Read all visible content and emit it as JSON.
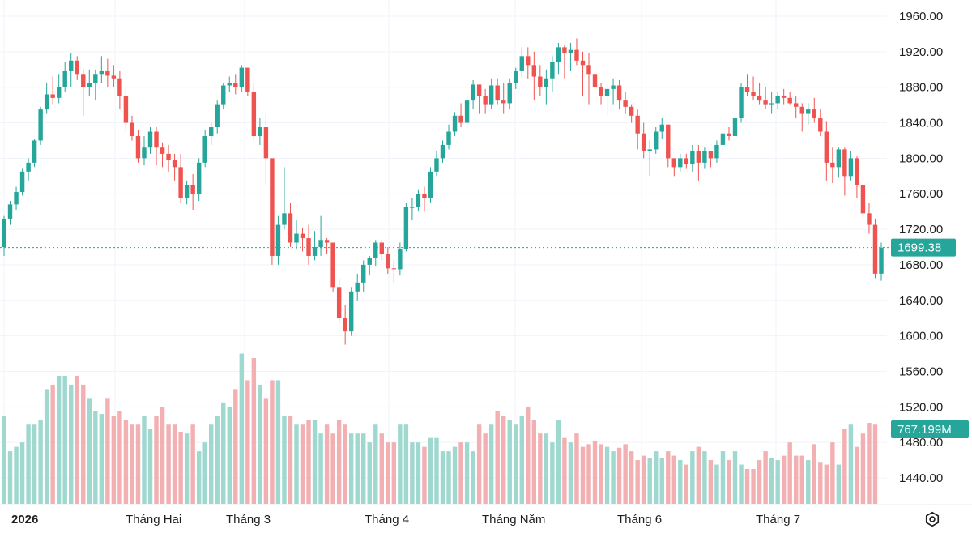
{
  "chart_data": {
    "type": "candlestick",
    "y_axis": {
      "min": 1400,
      "max": 1980,
      "ticks": [
        1440,
        1480,
        1520,
        1560,
        1600,
        1640,
        1680,
        1720,
        1760,
        1800,
        1840,
        1880,
        1920,
        1960
      ],
      "tick_labels": [
        "1440.00",
        "1480.00",
        "1520.00",
        "1560.00",
        "1600.00",
        "1640.00",
        "1680.00",
        "1720.00",
        "1760.00",
        "1800.00",
        "1840.00",
        "1880.00",
        "1920.00",
        "1960.00"
      ],
      "position": "right"
    },
    "x_axis": {
      "labels": [
        "2026",
        "Tháng Hai",
        "Tháng 3",
        "Tháng 4",
        "Tháng Năm",
        "Tháng 6",
        "Tháng 7"
      ]
    },
    "grid": true,
    "colors": {
      "up": "#26a69a",
      "down": "#ef5350",
      "up_volume": "#9fd8cf",
      "down_volume": "#f2b0b2",
      "grid": "#f0f3fa",
      "price_line": "#26a69a"
    },
    "last_price": {
      "value": 1699.38,
      "label": "1699.38"
    },
    "last_volume": {
      "label": "767.199M"
    },
    "ohlc": [
      [
        1700,
        1735,
        1690,
        1732
      ],
      [
        1732,
        1752,
        1725,
        1748
      ],
      [
        1748,
        1768,
        1742,
        1762
      ],
      [
        1762,
        1788,
        1758,
        1785
      ],
      [
        1785,
        1800,
        1775,
        1795
      ],
      [
        1795,
        1822,
        1790,
        1820
      ],
      [
        1820,
        1858,
        1815,
        1855
      ],
      [
        1855,
        1885,
        1850,
        1872
      ],
      [
        1872,
        1892,
        1860,
        1868
      ],
      [
        1868,
        1895,
        1862,
        1880
      ],
      [
        1880,
        1908,
        1875,
        1898
      ],
      [
        1898,
        1918,
        1880,
        1910
      ],
      [
        1910,
        1915,
        1888,
        1895
      ],
      [
        1895,
        1900,
        1848,
        1880
      ],
      [
        1880,
        1900,
        1870,
        1885
      ],
      [
        1885,
        1900,
        1865,
        1895
      ],
      [
        1895,
        1915,
        1885,
        1898
      ],
      [
        1898,
        1912,
        1880,
        1893
      ],
      [
        1893,
        1905,
        1880,
        1890
      ],
      [
        1890,
        1898,
        1855,
        1870
      ],
      [
        1870,
        1880,
        1830,
        1840
      ],
      [
        1840,
        1848,
        1820,
        1825
      ],
      [
        1825,
        1832,
        1795,
        1800
      ],
      [
        1800,
        1825,
        1792,
        1812
      ],
      [
        1812,
        1835,
        1805,
        1830
      ],
      [
        1830,
        1835,
        1792,
        1812
      ],
      [
        1812,
        1818,
        1790,
        1805
      ],
      [
        1805,
        1815,
        1785,
        1798
      ],
      [
        1798,
        1805,
        1775,
        1790
      ],
      [
        1790,
        1805,
        1750,
        1755
      ],
      [
        1755,
        1775,
        1748,
        1770
      ],
      [
        1770,
        1782,
        1742,
        1760
      ],
      [
        1760,
        1800,
        1752,
        1795
      ],
      [
        1795,
        1832,
        1790,
        1825
      ],
      [
        1825,
        1840,
        1815,
        1835
      ],
      [
        1835,
        1865,
        1828,
        1860
      ],
      [
        1860,
        1885,
        1855,
        1882
      ],
      [
        1882,
        1892,
        1875,
        1885
      ],
      [
        1885,
        1895,
        1872,
        1880
      ],
      [
        1880,
        1905,
        1875,
        1902
      ],
      [
        1902,
        1902,
        1870,
        1875
      ],
      [
        1875,
        1885,
        1820,
        1825
      ],
      [
        1825,
        1845,
        1815,
        1835
      ],
      [
        1835,
        1850,
        1770,
        1800
      ],
      [
        1800,
        1800,
        1680,
        1690
      ],
      [
        1690,
        1735,
        1680,
        1725
      ],
      [
        1725,
        1790,
        1720,
        1738
      ],
      [
        1738,
        1750,
        1700,
        1705
      ],
      [
        1705,
        1730,
        1698,
        1715
      ],
      [
        1715,
        1722,
        1695,
        1710
      ],
      [
        1710,
        1725,
        1680,
        1690
      ],
      [
        1690,
        1718,
        1685,
        1700
      ],
      [
        1700,
        1735,
        1690,
        1708
      ],
      [
        1708,
        1710,
        1692,
        1705
      ],
      [
        1705,
        1700,
        1650,
        1655
      ],
      [
        1655,
        1665,
        1615,
        1620
      ],
      [
        1620,
        1635,
        1590,
        1605
      ],
      [
        1605,
        1655,
        1600,
        1650
      ],
      [
        1650,
        1670,
        1640,
        1660
      ],
      [
        1660,
        1685,
        1650,
        1680
      ],
      [
        1680,
        1690,
        1668,
        1688
      ],
      [
        1688,
        1708,
        1678,
        1705
      ],
      [
        1705,
        1708,
        1685,
        1692
      ],
      [
        1692,
        1700,
        1670,
        1676
      ],
      [
        1676,
        1686,
        1660,
        1675
      ],
      [
        1675,
        1705,
        1668,
        1698
      ],
      [
        1698,
        1750,
        1695,
        1745
      ],
      [
        1745,
        1755,
        1730,
        1745
      ],
      [
        1745,
        1765,
        1740,
        1760
      ],
      [
        1760,
        1768,
        1740,
        1755
      ],
      [
        1755,
        1790,
        1750,
        1785
      ],
      [
        1785,
        1808,
        1780,
        1800
      ],
      [
        1800,
        1820,
        1795,
        1815
      ],
      [
        1815,
        1838,
        1810,
        1830
      ],
      [
        1830,
        1852,
        1825,
        1848
      ],
      [
        1848,
        1862,
        1835,
        1840
      ],
      [
        1840,
        1870,
        1835,
        1865
      ],
      [
        1865,
        1888,
        1855,
        1883
      ],
      [
        1883,
        1882,
        1850,
        1870
      ],
      [
        1870,
        1878,
        1850,
        1860
      ],
      [
        1860,
        1890,
        1855,
        1882
      ],
      [
        1882,
        1890,
        1860,
        1865
      ],
      [
        1865,
        1885,
        1850,
        1862
      ],
      [
        1862,
        1890,
        1855,
        1885
      ],
      [
        1885,
        1902,
        1878,
        1898
      ],
      [
        1898,
        1925,
        1892,
        1915
      ],
      [
        1915,
        1925,
        1890,
        1905
      ],
      [
        1905,
        1920,
        1865,
        1892
      ],
      [
        1892,
        1905,
        1870,
        1880
      ],
      [
        1880,
        1900,
        1860,
        1890
      ],
      [
        1890,
        1915,
        1875,
        1908
      ],
      [
        1908,
        1930,
        1895,
        1925
      ],
      [
        1925,
        1928,
        1890,
        1918
      ],
      [
        1918,
        1930,
        1898,
        1922
      ],
      [
        1922,
        1935,
        1905,
        1910
      ],
      [
        1910,
        1920,
        1870,
        1905
      ],
      [
        1905,
        1918,
        1860,
        1895
      ],
      [
        1895,
        1910,
        1855,
        1880
      ],
      [
        1880,
        1885,
        1860,
        1870
      ],
      [
        1870,
        1885,
        1848,
        1878
      ],
      [
        1878,
        1890,
        1860,
        1882
      ],
      [
        1882,
        1888,
        1855,
        1865
      ],
      [
        1865,
        1875,
        1850,
        1858
      ],
      [
        1858,
        1860,
        1840,
        1848
      ],
      [
        1848,
        1855,
        1810,
        1828
      ],
      [
        1828,
        1840,
        1800,
        1808
      ],
      [
        1808,
        1820,
        1780,
        1810
      ],
      [
        1810,
        1835,
        1805,
        1830
      ],
      [
        1830,
        1845,
        1822,
        1838
      ],
      [
        1838,
        1838,
        1790,
        1800
      ],
      [
        1800,
        1800,
        1780,
        1790
      ],
      [
        1790,
        1805,
        1785,
        1800
      ],
      [
        1800,
        1805,
        1788,
        1793
      ],
      [
        1793,
        1815,
        1785,
        1808
      ],
      [
        1808,
        1815,
        1775,
        1795
      ],
      [
        1795,
        1812,
        1788,
        1808
      ],
      [
        1808,
        1808,
        1790,
        1800
      ],
      [
        1800,
        1820,
        1795,
        1815
      ],
      [
        1815,
        1835,
        1805,
        1828
      ],
      [
        1828,
        1835,
        1820,
        1825
      ],
      [
        1825,
        1850,
        1820,
        1845
      ],
      [
        1845,
        1885,
        1840,
        1880
      ],
      [
        1880,
        1895,
        1870,
        1875
      ],
      [
        1875,
        1892,
        1865,
        1870
      ],
      [
        1870,
        1885,
        1860,
        1865
      ],
      [
        1865,
        1880,
        1855,
        1860
      ],
      [
        1860,
        1875,
        1850,
        1862
      ],
      [
        1862,
        1875,
        1855,
        1870
      ],
      [
        1870,
        1878,
        1860,
        1868
      ],
      [
        1868,
        1875,
        1860,
        1862
      ],
      [
        1862,
        1870,
        1845,
        1858
      ],
      [
        1858,
        1862,
        1830,
        1850
      ],
      [
        1850,
        1862,
        1838,
        1855
      ],
      [
        1855,
        1868,
        1840,
        1845
      ],
      [
        1845,
        1855,
        1825,
        1830
      ],
      [
        1830,
        1842,
        1775,
        1795
      ],
      [
        1795,
        1812,
        1772,
        1790
      ],
      [
        1790,
        1812,
        1778,
        1810
      ],
      [
        1810,
        1812,
        1758,
        1780
      ],
      [
        1780,
        1808,
        1775,
        1800
      ],
      [
        1800,
        1802,
        1755,
        1770
      ],
      [
        1770,
        1782,
        1730,
        1738
      ],
      [
        1738,
        1750,
        1715,
        1725
      ],
      [
        1725,
        1732,
        1665,
        1670
      ],
      [
        1670,
        1705,
        1662,
        1699.38
      ]
    ],
    "volume": [
      1510,
      1470,
      1475,
      1480,
      1500,
      1500,
      1505,
      1540,
      1545,
      1555,
      1555,
      1545,
      1555,
      1545,
      1530,
      1515,
      1512,
      1530,
      1510,
      1515,
      1505,
      1500,
      1500,
      1510,
      1495,
      1510,
      1520,
      1500,
      1500,
      1492,
      1490,
      1500,
      1470,
      1480,
      1500,
      1510,
      1525,
      1520,
      1540,
      1580,
      1550,
      1575,
      1545,
      1530,
      1550,
      1550,
      1510,
      1510,
      1500,
      1500,
      1505,
      1505,
      1490,
      1500,
      1490,
      1505,
      1500,
      1490,
      1490,
      1490,
      1480,
      1500,
      1490,
      1480,
      1480,
      1500,
      1500,
      1480,
      1480,
      1475,
      1485,
      1485,
      1470,
      1470,
      1475,
      1480,
      1480,
      1470,
      1500,
      1490,
      1500,
      1515,
      1510,
      1505,
      1500,
      1510,
      1520,
      1505,
      1490,
      1490,
      1480,
      1505,
      1485,
      1480,
      1490,
      1475,
      1478,
      1482,
      1478,
      1475,
      1470,
      1474,
      1478,
      1470,
      1460,
      1465,
      1462,
      1470,
      1462,
      1470,
      1465,
      1460,
      1455,
      1470,
      1475,
      1470,
      1460,
      1455,
      1470,
      1460,
      1470,
      1455,
      1450,
      1450,
      1460,
      1470,
      1462,
      1460,
      1465,
      1480,
      1465,
      1465,
      1460,
      1478,
      1458,
      1455,
      1480,
      1455,
      1495,
      1500,
      1475,
      1490,
      1502,
      1500
    ]
  },
  "ui": {
    "settings_icon": "gear-icon"
  }
}
